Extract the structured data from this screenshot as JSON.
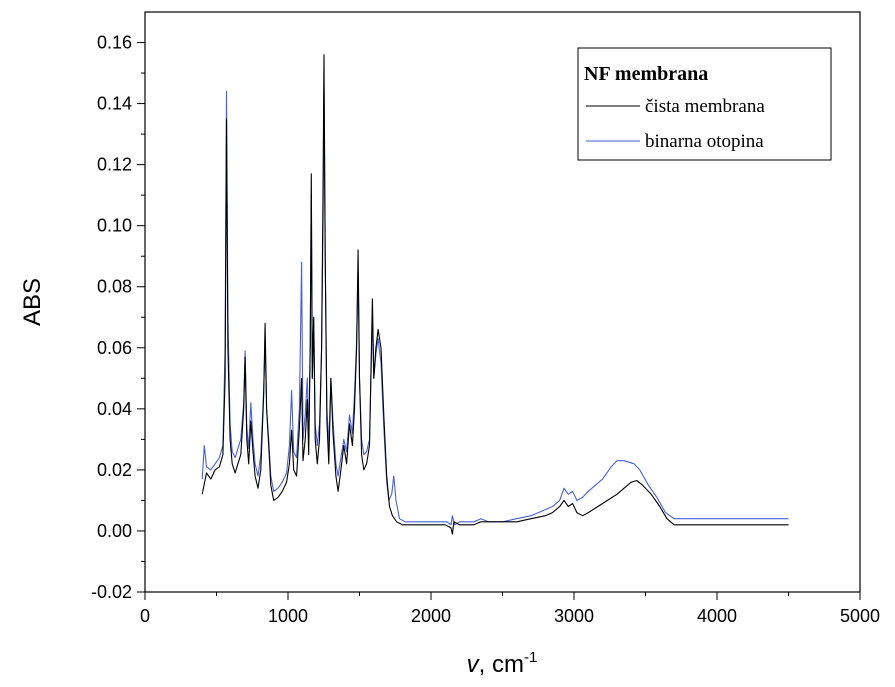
{
  "chart_data": {
    "type": "line",
    "xlabel_main": "v",
    "xlabel_unit": ", cm",
    "xlabel_exp": "-1",
    "ylabel": "ABS",
    "xlim": [
      0,
      5000
    ],
    "ylim": [
      -0.02,
      0.17
    ],
    "xticks": [
      0,
      1000,
      2000,
      3000,
      4000,
      5000
    ],
    "xtick_labels": [
      "0",
      "1000",
      "2000",
      "3000",
      "4000",
      "5000"
    ],
    "yticks": [
      -0.02,
      0.0,
      0.02,
      0.04,
      0.06,
      0.08,
      0.1,
      0.12,
      0.14,
      0.16
    ],
    "ytick_labels": [
      "-0.02",
      "0.00",
      "0.02",
      "0.04",
      "0.06",
      "0.08",
      "0.10",
      "0.12",
      "0.14",
      "0.16"
    ],
    "legend": {
      "title": "NF membrana",
      "position": "top-right"
    },
    "series": [
      {
        "name": "čista membrana",
        "color": "#000000",
        "points": [
          [
            400,
            0.012
          ],
          [
            430,
            0.019
          ],
          [
            460,
            0.017
          ],
          [
            490,
            0.02
          ],
          [
            520,
            0.021
          ],
          [
            545,
            0.025
          ],
          [
            560,
            0.05
          ],
          [
            570,
            0.135
          ],
          [
            580,
            0.06
          ],
          [
            595,
            0.03
          ],
          [
            610,
            0.022
          ],
          [
            630,
            0.019
          ],
          [
            650,
            0.022
          ],
          [
            670,
            0.025
          ],
          [
            690,
            0.04
          ],
          [
            700,
            0.057
          ],
          [
            712,
            0.03
          ],
          [
            725,
            0.022
          ],
          [
            740,
            0.036
          ],
          [
            755,
            0.026
          ],
          [
            770,
            0.018
          ],
          [
            790,
            0.014
          ],
          [
            810,
            0.02
          ],
          [
            830,
            0.045
          ],
          [
            840,
            0.068
          ],
          [
            850,
            0.04
          ],
          [
            865,
            0.028
          ],
          [
            880,
            0.015
          ],
          [
            900,
            0.01
          ],
          [
            930,
            0.011
          ],
          [
            960,
            0.013
          ],
          [
            990,
            0.016
          ],
          [
            1010,
            0.022
          ],
          [
            1025,
            0.033
          ],
          [
            1040,
            0.02
          ],
          [
            1060,
            0.018
          ],
          [
            1080,
            0.034
          ],
          [
            1095,
            0.05
          ],
          [
            1105,
            0.023
          ],
          [
            1120,
            0.03
          ],
          [
            1135,
            0.043
          ],
          [
            1145,
            0.025
          ],
          [
            1155,
            0.06
          ],
          [
            1163,
            0.117
          ],
          [
            1170,
            0.05
          ],
          [
            1180,
            0.07
          ],
          [
            1190,
            0.03
          ],
          [
            1205,
            0.022
          ],
          [
            1220,
            0.03
          ],
          [
            1235,
            0.06
          ],
          [
            1245,
            0.11
          ],
          [
            1252,
            0.156
          ],
          [
            1260,
            0.09
          ],
          [
            1272,
            0.036
          ],
          [
            1285,
            0.022
          ],
          [
            1300,
            0.05
          ],
          [
            1315,
            0.032
          ],
          [
            1335,
            0.018
          ],
          [
            1350,
            0.013
          ],
          [
            1370,
            0.02
          ],
          [
            1390,
            0.028
          ],
          [
            1410,
            0.022
          ],
          [
            1430,
            0.035
          ],
          [
            1450,
            0.028
          ],
          [
            1465,
            0.04
          ],
          [
            1480,
            0.06
          ],
          [
            1490,
            0.092
          ],
          [
            1500,
            0.05
          ],
          [
            1515,
            0.025
          ],
          [
            1530,
            0.02
          ],
          [
            1550,
            0.022
          ],
          [
            1570,
            0.028
          ],
          [
            1590,
            0.076
          ],
          [
            1600,
            0.05
          ],
          [
            1615,
            0.06
          ],
          [
            1630,
            0.066
          ],
          [
            1650,
            0.06
          ],
          [
            1670,
            0.038
          ],
          [
            1690,
            0.018
          ],
          [
            1710,
            0.008
          ],
          [
            1730,
            0.005
          ],
          [
            1760,
            0.003
          ],
          [
            1800,
            0.002
          ],
          [
            1850,
            0.002
          ],
          [
            1900,
            0.002
          ],
          [
            1950,
            0.002
          ],
          [
            2000,
            0.002
          ],
          [
            2050,
            0.002
          ],
          [
            2100,
            0.002
          ],
          [
            2140,
            0.001
          ],
          [
            2150,
            -0.001
          ],
          [
            2160,
            0.003
          ],
          [
            2200,
            0.002
          ],
          [
            2250,
            0.002
          ],
          [
            2300,
            0.002
          ],
          [
            2350,
            0.003
          ],
          [
            2400,
            0.003
          ],
          [
            2500,
            0.003
          ],
          [
            2600,
            0.003
          ],
          [
            2700,
            0.004
          ],
          [
            2800,
            0.005
          ],
          [
            2850,
            0.006
          ],
          [
            2900,
            0.008
          ],
          [
            2930,
            0.01
          ],
          [
            2960,
            0.008
          ],
          [
            2990,
            0.009
          ],
          [
            3020,
            0.006
          ],
          [
            3060,
            0.005
          ],
          [
            3100,
            0.006
          ],
          [
            3200,
            0.009
          ],
          [
            3300,
            0.012
          ],
          [
            3400,
            0.016
          ],
          [
            3440,
            0.0165
          ],
          [
            3480,
            0.015
          ],
          [
            3540,
            0.012
          ],
          [
            3600,
            0.008
          ],
          [
            3650,
            0.004
          ],
          [
            3700,
            0.002
          ],
          [
            3800,
            0.002
          ],
          [
            3900,
            0.002
          ],
          [
            4000,
            0.002
          ],
          [
            4100,
            0.002
          ],
          [
            4200,
            0.002
          ],
          [
            4300,
            0.002
          ],
          [
            4400,
            0.002
          ],
          [
            4500,
            0.002
          ]
        ]
      },
      {
        "name": "binarna otopina",
        "color": "#4a5fd6",
        "points": [
          [
            400,
            0.017
          ],
          [
            415,
            0.028
          ],
          [
            430,
            0.021
          ],
          [
            460,
            0.02
          ],
          [
            490,
            0.022
          ],
          [
            520,
            0.024
          ],
          [
            545,
            0.028
          ],
          [
            560,
            0.06
          ],
          [
            570,
            0.144
          ],
          [
            580,
            0.07
          ],
          [
            595,
            0.035
          ],
          [
            610,
            0.026
          ],
          [
            630,
            0.024
          ],
          [
            650,
            0.027
          ],
          [
            670,
            0.03
          ],
          [
            690,
            0.042
          ],
          [
            700,
            0.059
          ],
          [
            712,
            0.034
          ],
          [
            725,
            0.027
          ],
          [
            740,
            0.042
          ],
          [
            755,
            0.03
          ],
          [
            770,
            0.022
          ],
          [
            790,
            0.018
          ],
          [
            810,
            0.025
          ],
          [
            830,
            0.046
          ],
          [
            840,
            0.063
          ],
          [
            850,
            0.04
          ],
          [
            865,
            0.03
          ],
          [
            880,
            0.018
          ],
          [
            900,
            0.013
          ],
          [
            930,
            0.014
          ],
          [
            960,
            0.016
          ],
          [
            990,
            0.019
          ],
          [
            1010,
            0.028
          ],
          [
            1025,
            0.046
          ],
          [
            1040,
            0.026
          ],
          [
            1060,
            0.024
          ],
          [
            1080,
            0.04
          ],
          [
            1095,
            0.088
          ],
          [
            1105,
            0.03
          ],
          [
            1120,
            0.038
          ],
          [
            1135,
            0.05
          ],
          [
            1145,
            0.03
          ],
          [
            1155,
            0.06
          ],
          [
            1163,
            0.11
          ],
          [
            1170,
            0.05
          ],
          [
            1180,
            0.07
          ],
          [
            1190,
            0.035
          ],
          [
            1205,
            0.028
          ],
          [
            1220,
            0.035
          ],
          [
            1235,
            0.06
          ],
          [
            1245,
            0.1
          ],
          [
            1252,
            0.145
          ],
          [
            1260,
            0.09
          ],
          [
            1272,
            0.04
          ],
          [
            1285,
            0.028
          ],
          [
            1300,
            0.05
          ],
          [
            1315,
            0.036
          ],
          [
            1335,
            0.022
          ],
          [
            1350,
            0.018
          ],
          [
            1370,
            0.024
          ],
          [
            1390,
            0.03
          ],
          [
            1410,
            0.026
          ],
          [
            1430,
            0.038
          ],
          [
            1450,
            0.032
          ],
          [
            1465,
            0.045
          ],
          [
            1480,
            0.062
          ],
          [
            1490,
            0.085
          ],
          [
            1500,
            0.05
          ],
          [
            1515,
            0.03
          ],
          [
            1530,
            0.025
          ],
          [
            1550,
            0.026
          ],
          [
            1570,
            0.03
          ],
          [
            1590,
            0.07
          ],
          [
            1600,
            0.05
          ],
          [
            1615,
            0.058
          ],
          [
            1630,
            0.063
          ],
          [
            1650,
            0.055
          ],
          [
            1670,
            0.034
          ],
          [
            1690,
            0.016
          ],
          [
            1705,
            0.01
          ],
          [
            1725,
            0.012
          ],
          [
            1740,
            0.018
          ],
          [
            1755,
            0.01
          ],
          [
            1780,
            0.004
          ],
          [
            1820,
            0.003
          ],
          [
            1870,
            0.003
          ],
          [
            1920,
            0.003
          ],
          [
            1970,
            0.003
          ],
          [
            2020,
            0.003
          ],
          [
            2070,
            0.003
          ],
          [
            2110,
            0.003
          ],
          [
            2140,
            0.002
          ],
          [
            2150,
            0.005
          ],
          [
            2165,
            0.002
          ],
          [
            2200,
            0.003
          ],
          [
            2250,
            0.003
          ],
          [
            2300,
            0.003
          ],
          [
            2350,
            0.004
          ],
          [
            2400,
            0.003
          ],
          [
            2500,
            0.003
          ],
          [
            2600,
            0.004
          ],
          [
            2700,
            0.005
          ],
          [
            2800,
            0.007
          ],
          [
            2850,
            0.008
          ],
          [
            2900,
            0.01
          ],
          [
            2930,
            0.014
          ],
          [
            2960,
            0.012
          ],
          [
            2990,
            0.013
          ],
          [
            3020,
            0.01
          ],
          [
            3060,
            0.011
          ],
          [
            3100,
            0.013
          ],
          [
            3200,
            0.017
          ],
          [
            3260,
            0.021
          ],
          [
            3300,
            0.023
          ],
          [
            3350,
            0.023
          ],
          [
            3420,
            0.022
          ],
          [
            3460,
            0.02
          ],
          [
            3520,
            0.015
          ],
          [
            3580,
            0.011
          ],
          [
            3640,
            0.006
          ],
          [
            3700,
            0.004
          ],
          [
            3800,
            0.004
          ],
          [
            3900,
            0.004
          ],
          [
            4000,
            0.004
          ],
          [
            4100,
            0.004
          ],
          [
            4200,
            0.004
          ],
          [
            4300,
            0.004
          ],
          [
            4400,
            0.004
          ],
          [
            4500,
            0.004
          ]
        ]
      }
    ]
  }
}
